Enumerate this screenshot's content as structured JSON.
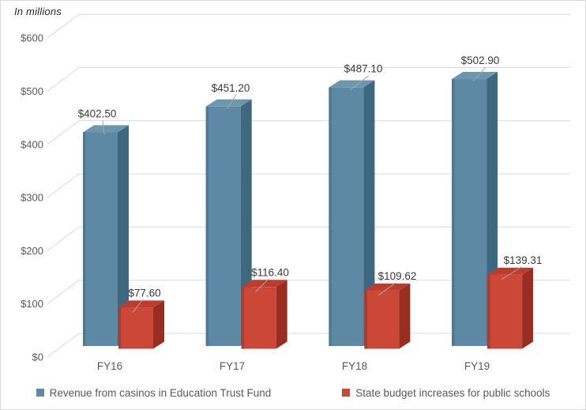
{
  "chart_data": {
    "type": "bar",
    "style": "3d-clustered-column",
    "note": "In millions",
    "categories": [
      "FY16",
      "FY17",
      "FY18",
      "FY19"
    ],
    "series": [
      {
        "name": "Revenue from casinos in Education Trust Fund",
        "color": "#5d89a4",
        "color_top": "#6b96ae",
        "color_side": "#3d6880",
        "color_edge": "#4d7a93",
        "values": [
          402.5,
          451.2,
          487.1,
          502.9
        ],
        "labels": [
          "$402.50",
          "$451.20",
          "$487.10",
          "$502.90"
        ]
      },
      {
        "name": "State budget increases for public schools",
        "color": "#cb4839",
        "color_top": "#bd3c2d",
        "color_side": "#982d21",
        "color_edge": "#b03a2b",
        "values": [
          77.6,
          116.4,
          109.62,
          139.31
        ],
        "labels": [
          "$77.60",
          "$116.40",
          "$109.62",
          "$139.31"
        ]
      }
    ],
    "y_ticks": [
      "$0",
      "$100",
      "$200",
      "$300",
      "$400",
      "$500",
      "$600"
    ],
    "ylim": [
      0,
      600
    ],
    "y_step": 100,
    "grid": true,
    "legend_position": "bottom",
    "colors": {
      "gridline": "#d9d9d9",
      "axis_text": "#595959",
      "data_label_text": "#3a3a3a",
      "leader_line": "#a6a6a6",
      "frame_border": "#d9d9d9"
    }
  }
}
